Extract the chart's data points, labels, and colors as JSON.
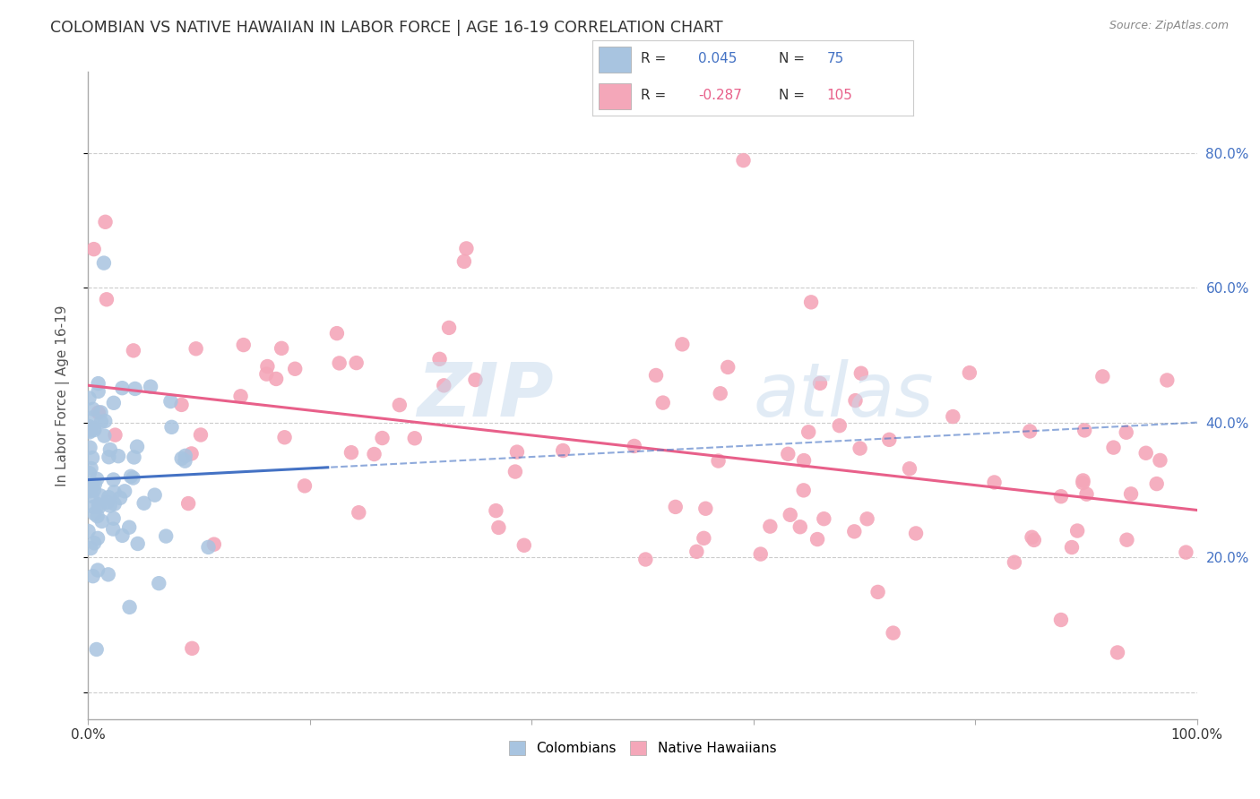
{
  "title": "COLOMBIAN VS NATIVE HAWAIIAN IN LABOR FORCE | AGE 16-19 CORRELATION CHART",
  "source": "Source: ZipAtlas.com",
  "ylabel": "In Labor Force | Age 16-19",
  "legend_colombians": "Colombians",
  "legend_native_hawaiians": "Native Hawaiians",
  "r_colombian": 0.045,
  "n_colombian": 75,
  "r_native": -0.287,
  "n_native": 105,
  "colombian_color": "#a8c4e0",
  "native_color": "#f4a7b9",
  "line_colombian_color": "#4472c4",
  "line_native_color": "#e8608a",
  "watermark_zip": "ZIP",
  "watermark_atlas": "atlas",
  "background_color": "#ffffff",
  "grid_color": "#cccccc",
  "seed": 42,
  "col_line_intercept": 0.315,
  "col_line_slope": 0.085,
  "nat_line_intercept": 0.455,
  "nat_line_slope": -0.185,
  "xlim": [
    0.0,
    1.0
  ],
  "ylim": [
    -0.04,
    0.92
  ],
  "ytick_values": [
    0.0,
    0.2,
    0.4,
    0.6,
    0.8
  ],
  "ytick_labels_right": [
    "",
    "20.0%",
    "40.0%",
    "60.0%",
    "80.0%"
  ],
  "title_color": "#333333",
  "source_color": "#888888",
  "right_tick_color": "#4472c4"
}
